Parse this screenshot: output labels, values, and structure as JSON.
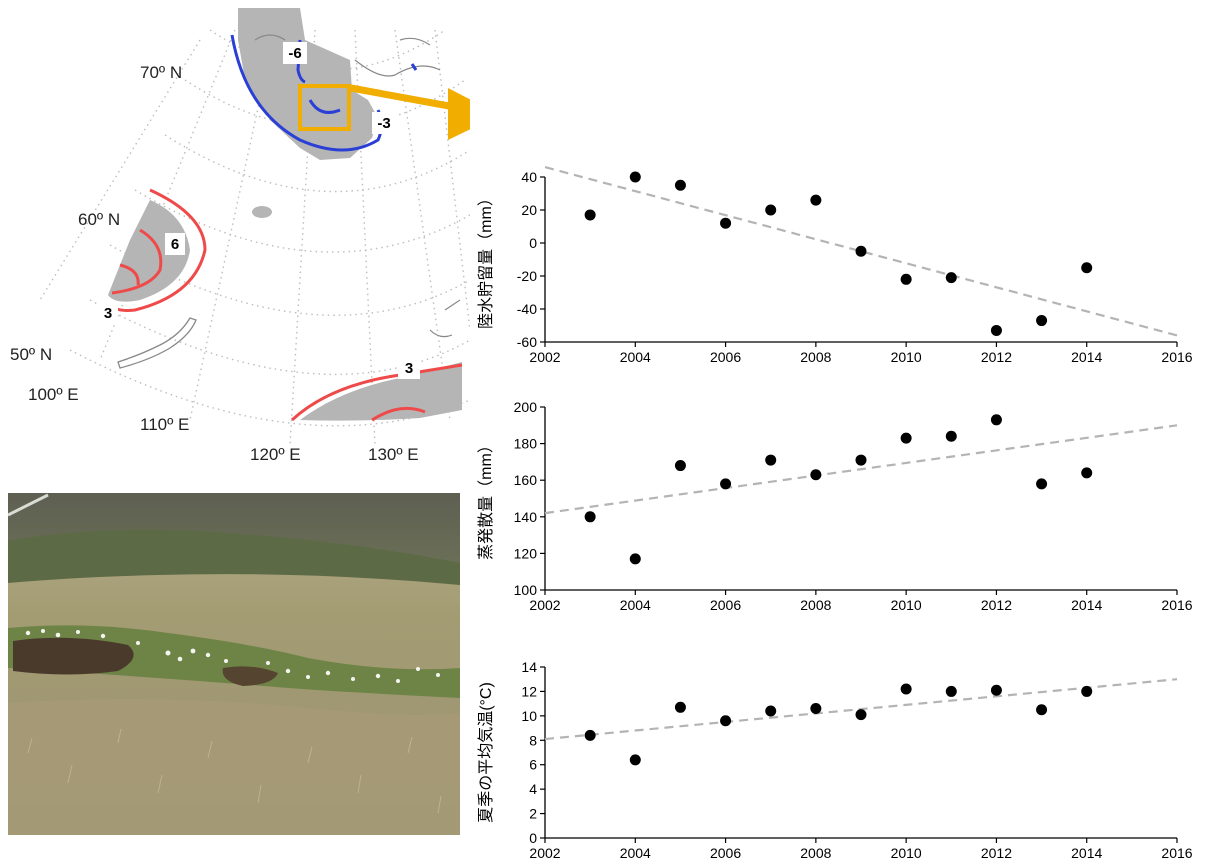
{
  "map": {
    "lat_labels": [
      "70º N",
      "60º N",
      "50º N"
    ],
    "lon_labels": [
      "100º E",
      "110º E",
      "120º E",
      "130º E"
    ],
    "contour_labels": [
      "-6",
      "-3",
      "6",
      "3",
      "3"
    ],
    "colors": {
      "negative_contour": "#2a3fd6",
      "positive_contour": "#ef4a4a",
      "land_fill": "#b5b5b5",
      "highlight": "#f2ae00"
    }
  },
  "chart_data": [
    {
      "type": "scatter",
      "title": "",
      "xlabel": "",
      "ylabel": "陸水貯留量（mm）",
      "xlim": [
        2002,
        2016
      ],
      "ylim": [
        -60,
        40
      ],
      "xticks": [
        "2002",
        "2004",
        "2006",
        "2008",
        "2010",
        "2012",
        "2014",
        "2016"
      ],
      "yticks": [
        "-60",
        "-40",
        "-20",
        "0",
        "20",
        "40"
      ],
      "x": [
        2003,
        2004,
        2005,
        2006,
        2007,
        2008,
        2009,
        2010,
        2011,
        2012,
        2013,
        2014
      ],
      "y": [
        17,
        40,
        35,
        12,
        20,
        26,
        -5,
        -22,
        -21,
        -53,
        -47,
        -15
      ],
      "trend": {
        "x": [
          2002,
          2016
        ],
        "y": [
          46,
          -56
        ]
      },
      "grid": false
    },
    {
      "type": "scatter",
      "title": "",
      "xlabel": "",
      "ylabel": "蒸発散量（mm）",
      "xlim": [
        2002,
        2016
      ],
      "ylim": [
        100,
        200
      ],
      "xticks": [
        "2002",
        "2004",
        "2006",
        "2008",
        "2010",
        "2012",
        "2014",
        "2016"
      ],
      "yticks": [
        "100",
        "120",
        "140",
        "160",
        "180",
        "200"
      ],
      "x": [
        2003,
        2004,
        2005,
        2006,
        2007,
        2008,
        2009,
        2010,
        2011,
        2012,
        2013,
        2014
      ],
      "y": [
        140,
        117,
        168,
        158,
        171,
        163,
        171,
        183,
        184,
        193,
        158,
        164
      ],
      "trend": {
        "x": [
          2002,
          2016
        ],
        "y": [
          142,
          190
        ]
      },
      "grid": false
    },
    {
      "type": "scatter",
      "title": "",
      "xlabel": "",
      "ylabel": "夏季の平均気温(°C)",
      "xlim": [
        2002,
        2016
      ],
      "ylim": [
        0,
        14
      ],
      "xticks": [
        "2002",
        "2004",
        "2006",
        "2008",
        "2010",
        "2012",
        "2014",
        "2016"
      ],
      "yticks": [
        "0",
        "2",
        "4",
        "6",
        "8",
        "10",
        "12",
        "14"
      ],
      "x": [
        2003,
        2004,
        2005,
        2006,
        2007,
        2008,
        2009,
        2010,
        2011,
        2012,
        2013,
        2014
      ],
      "y": [
        8.4,
        6.4,
        10.7,
        9.6,
        10.4,
        10.6,
        10.1,
        12.2,
        12.0,
        12.1,
        10.5,
        12.0
      ],
      "trend": {
        "x": [
          2002,
          2016
        ],
        "y": [
          8.1,
          13.0
        ]
      },
      "grid": false
    }
  ]
}
